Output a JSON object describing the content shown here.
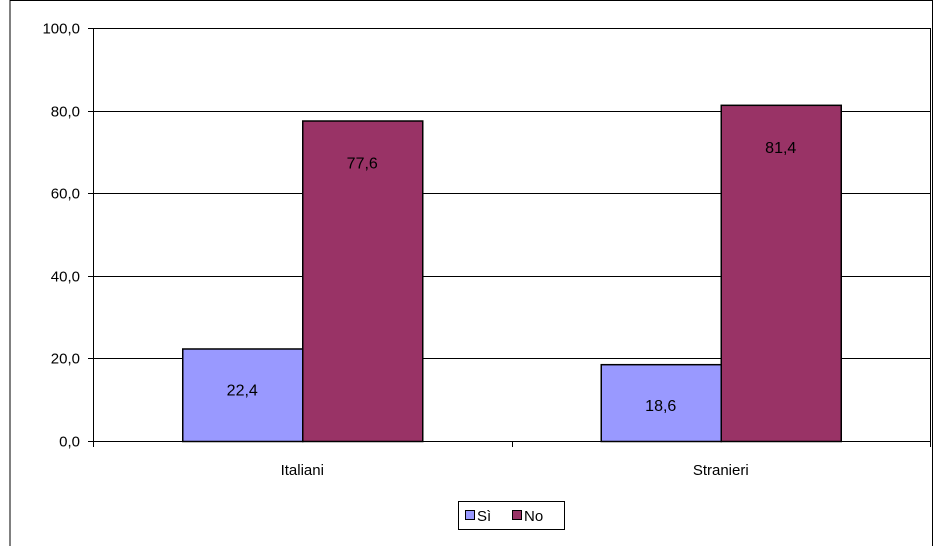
{
  "chart_data": {
    "type": "bar",
    "categories": [
      "Italiani",
      "Stranieri"
    ],
    "series": [
      {
        "name": "Sì",
        "values": [
          22.4,
          18.6
        ],
        "color": "#9999ff"
      },
      {
        "name": "No",
        "values": [
          77.6,
          81.4
        ],
        "color": "#993366"
      }
    ],
    "data_labels": [
      [
        "22,4",
        "18,6"
      ],
      [
        "77,6",
        "81,4"
      ]
    ],
    "ylim": [
      0,
      100
    ],
    "yticks": [
      0,
      20,
      40,
      60,
      80,
      100
    ],
    "ytick_labels": [
      "0,0",
      "20,0",
      "40,0",
      "60,0",
      "80,0",
      "100,0"
    ],
    "grid": true,
    "legend_position": "bottom",
    "title": "",
    "xlabel": "",
    "ylabel": ""
  }
}
